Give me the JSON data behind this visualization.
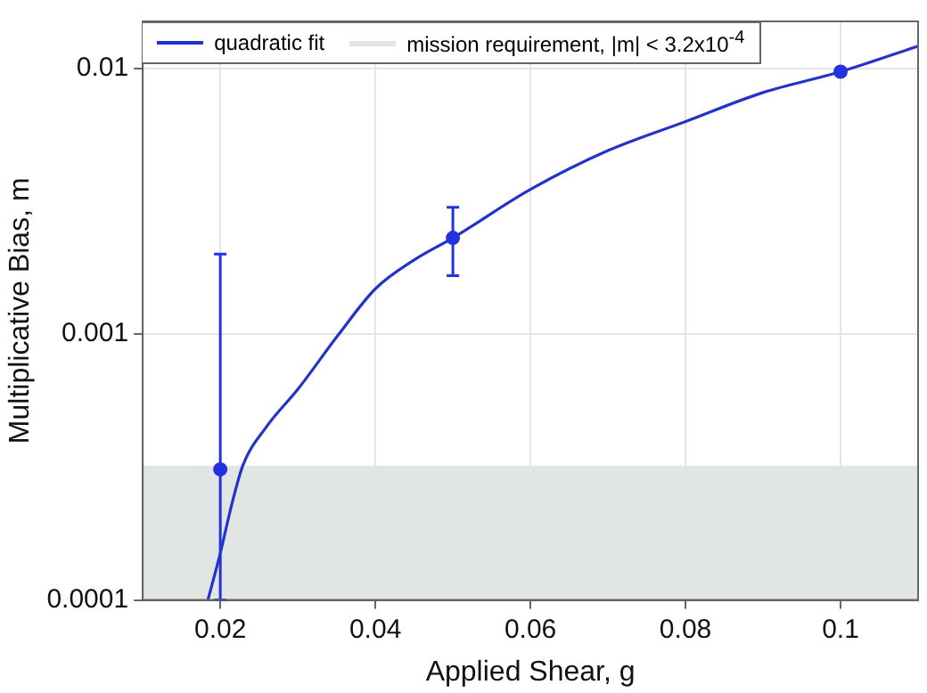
{
  "chart_data": {
    "type": "scatter",
    "xlabel": "Applied Shear, g",
    "ylabel": "Multiplicative Bias, m",
    "log": "y",
    "grid": true,
    "legend": "top left",
    "marker": "circle",
    "xlim": [
      0.01,
      0.11
    ],
    "xticks": [
      0.02,
      0.04,
      0.06,
      0.08,
      0.1
    ],
    "ylim": [
      0.0001,
      0.015
    ],
    "yticks": [
      0.0001,
      0.001,
      0.01
    ],
    "bands": [
      {
        "axis": "y",
        "from": 0.0001,
        "to": 0.00032,
        "label": "mission requirement, |m| < 3.2x10$^{-4}$",
        "color": "#e1e6e4"
      }
    ],
    "series": [
      {
        "color": "#2233dd",
        "x": [
          0.02,
          0.05,
          0.1
        ],
        "values": [
          0.00031,
          0.0023,
          0.0097
        ],
        "errors": [
          [
            0.0001,
            0.002
          ],
          [
            0.00166,
            0.003
          ],
          null
        ]
      },
      {
        "type": "line",
        "name": "quadratic fit",
        "color": "#2233cc",
        "marker": "none",
        "line_style": "solid",
        "x": [
          0.0184,
          0.02,
          0.0215,
          0.0229,
          0.026,
          0.03,
          0.0353,
          0.04,
          0.045,
          0.05,
          0.06,
          0.07,
          0.08,
          0.09,
          0.1,
          0.11
        ],
        "values": [
          0.0001,
          0.00015,
          0.00023,
          0.00032,
          0.00045,
          0.00062,
          0.001,
          0.00148,
          0.0019,
          0.0023,
          0.0035,
          0.0049,
          0.0063,
          0.0081,
          0.0097,
          0.0121
        ]
      }
    ]
  }
}
